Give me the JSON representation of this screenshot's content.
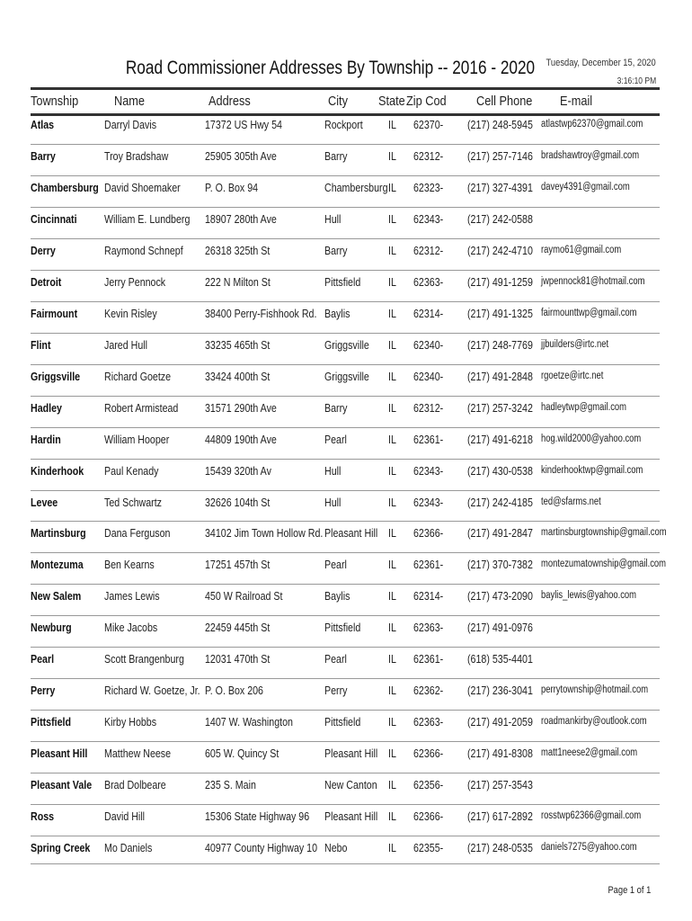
{
  "header": {
    "title": "Road Commissioner Addresses By Township -- 2016 - 2020",
    "date": "Tuesday, December 15, 2020",
    "time": "3:16:10 PM"
  },
  "columns": {
    "township": "Township",
    "name": "Name",
    "address": "Address",
    "city": "City",
    "state": "State",
    "zip": "Zip Cod",
    "phone": "Cell Phone",
    "email": "E-mail"
  },
  "rows": [
    {
      "township": "Atlas",
      "name": "Darryl  Davis",
      "address": "17372 US Hwy 54",
      "city": "Rockport",
      "state": "IL",
      "zip": "62370-",
      "phone": "(217) 248-5945",
      "email": "atlastwp62370@gmail.com"
    },
    {
      "township": "Barry",
      "name": "Troy  Bradshaw",
      "address": "25905 305th Ave",
      "city": "Barry",
      "state": "IL",
      "zip": "62312-",
      "phone": "(217) 257-7146",
      "email": "bradshawtroy@gmail.com"
    },
    {
      "township": "Chambersburg",
      "name": "David  Shoemaker",
      "address": "P. O. Box 94",
      "city": "Chambersburg",
      "state": "IL",
      "zip": "62323-",
      "phone": "(217) 327-4391",
      "email": "davey4391@gmail.com"
    },
    {
      "township": "Cincinnati",
      "name": "William E. Lundberg",
      "address": "18907 280th Ave",
      "city": "Hull",
      "state": "IL",
      "zip": "62343-",
      "phone": "(217) 242-0588",
      "email": ""
    },
    {
      "township": "Derry",
      "name": "Raymond  Schnepf",
      "address": "26318 325th St",
      "city": "Barry",
      "state": "IL",
      "zip": "62312-",
      "phone": "(217) 242-4710",
      "email": "raymo61@gmail.com"
    },
    {
      "township": "Detroit",
      "name": "Jerry  Pennock",
      "address": "222 N Milton St",
      "city": "Pittsfield",
      "state": "IL",
      "zip": "62363-",
      "phone": "(217) 491-1259",
      "email": "jwpennock81@hotmail.com"
    },
    {
      "township": "Fairmount",
      "name": "Kevin  Risley",
      "address": "38400 Perry-Fishhook Rd.",
      "city": "Baylis",
      "state": "IL",
      "zip": "62314-",
      "phone": "(217) 491-1325",
      "email": "fairmounttwp@gmail.com"
    },
    {
      "township": "Flint",
      "name": "Jared  Hull",
      "address": "33235 465th St",
      "city": "Griggsville",
      "state": "IL",
      "zip": "62340-",
      "phone": "(217) 248-7769",
      "email": "jjbuilders@irtc.net"
    },
    {
      "township": "Griggsville",
      "name": "Richard  Goetze",
      "address": "33424 400th St",
      "city": "Griggsville",
      "state": "IL",
      "zip": "62340-",
      "phone": "(217) 491-2848",
      "email": "rgoetze@irtc.net"
    },
    {
      "township": "Hadley",
      "name": "Robert  Armistead",
      "address": "31571 290th Ave",
      "city": "Barry",
      "state": "IL",
      "zip": "62312-",
      "phone": "(217) 257-3242",
      "email": "hadleytwp@gmail.com"
    },
    {
      "township": "Hardin",
      "name": "William  Hooper",
      "address": "44809 190th Ave",
      "city": "Pearl",
      "state": "IL",
      "zip": "62361-",
      "phone": "(217) 491-6218",
      "email": "hog.wild2000@yahoo.com"
    },
    {
      "township": "Kinderhook",
      "name": "Paul  Kenady",
      "address": "15439 320th Av",
      "city": "Hull",
      "state": "IL",
      "zip": "62343-",
      "phone": "(217) 430-0538",
      "email": "kinderhooktwp@gmail.com"
    },
    {
      "township": "Levee",
      "name": "Ted  Schwartz",
      "address": "32626 104th St",
      "city": "Hull",
      "state": "IL",
      "zip": "62343-",
      "phone": "(217) 242-4185",
      "email": "ted@sfarms.net"
    },
    {
      "township": "Martinsburg",
      "name": "Dana  Ferguson",
      "address": "34102 Jim Town Hollow Rd.",
      "city": "Pleasant Hill",
      "state": "IL",
      "zip": "62366-",
      "phone": "(217) 491-2847",
      "email": "martinsburgtownship@gmail.com"
    },
    {
      "township": "Montezuma",
      "name": "Ben  Kearns",
      "address": "17251 457th St",
      "city": "Pearl",
      "state": "IL",
      "zip": "62361-",
      "phone": "(217) 370-7382",
      "email": "montezumatownship@gmail.com"
    },
    {
      "township": "New Salem",
      "name": "James  Lewis",
      "address": "450 W Railroad St",
      "city": "Baylis",
      "state": "IL",
      "zip": "62314-",
      "phone": "(217) 473-2090",
      "email": "baylis_lewis@yahoo.com"
    },
    {
      "township": "Newburg",
      "name": "Mike  Jacobs",
      "address": "22459 445th St",
      "city": "Pittsfield",
      "state": "IL",
      "zip": "62363-",
      "phone": "(217) 491-0976",
      "email": ""
    },
    {
      "township": "Pearl",
      "name": "Scott  Brangenburg",
      "address": "12031 470th St",
      "city": "Pearl",
      "state": "IL",
      "zip": "62361-",
      "phone": "(618) 535-4401",
      "email": ""
    },
    {
      "township": "Perry",
      "name": "Richard W. Goetze, Jr.",
      "address": "P. O. Box 206",
      "city": "Perry",
      "state": "IL",
      "zip": "62362-",
      "phone": "(217) 236-3041",
      "email": "perrytownship@hotmail.com"
    },
    {
      "township": "Pittsfield",
      "name": "Kirby  Hobbs",
      "address": "1407 W. Washington",
      "city": "Pittsfield",
      "state": "IL",
      "zip": "62363-",
      "phone": "(217) 491-2059",
      "email": "roadmankirby@outlook.com"
    },
    {
      "township": "Pleasant Hill",
      "name": "Matthew  Neese",
      "address": "605 W. Quincy St",
      "city": "Pleasant Hill",
      "state": "IL",
      "zip": "62366-",
      "phone": "(217) 491-8308",
      "email": "matt1neese2@gmail.com"
    },
    {
      "township": "Pleasant Vale",
      "name": "Brad  Dolbeare",
      "address": "235 S. Main",
      "city": "New Canton",
      "state": "IL",
      "zip": "62356-",
      "phone": "(217) 257-3543",
      "email": ""
    },
    {
      "township": "Ross",
      "name": "David  Hill",
      "address": "15306 State Highway 96",
      "city": "Pleasant Hill",
      "state": "IL",
      "zip": "62366-",
      "phone": "(217) 617-2892",
      "email": "rosstwp62366@gmail.com"
    },
    {
      "township": "Spring Creek",
      "name": "Mo  Daniels",
      "address": "40977 County Highway 10",
      "city": "Nebo",
      "state": "IL",
      "zip": "62355-",
      "phone": "(217) 248-0535",
      "email": "daniels7275@yahoo.com"
    }
  ],
  "footer": {
    "page": "Page 1 of 1"
  }
}
